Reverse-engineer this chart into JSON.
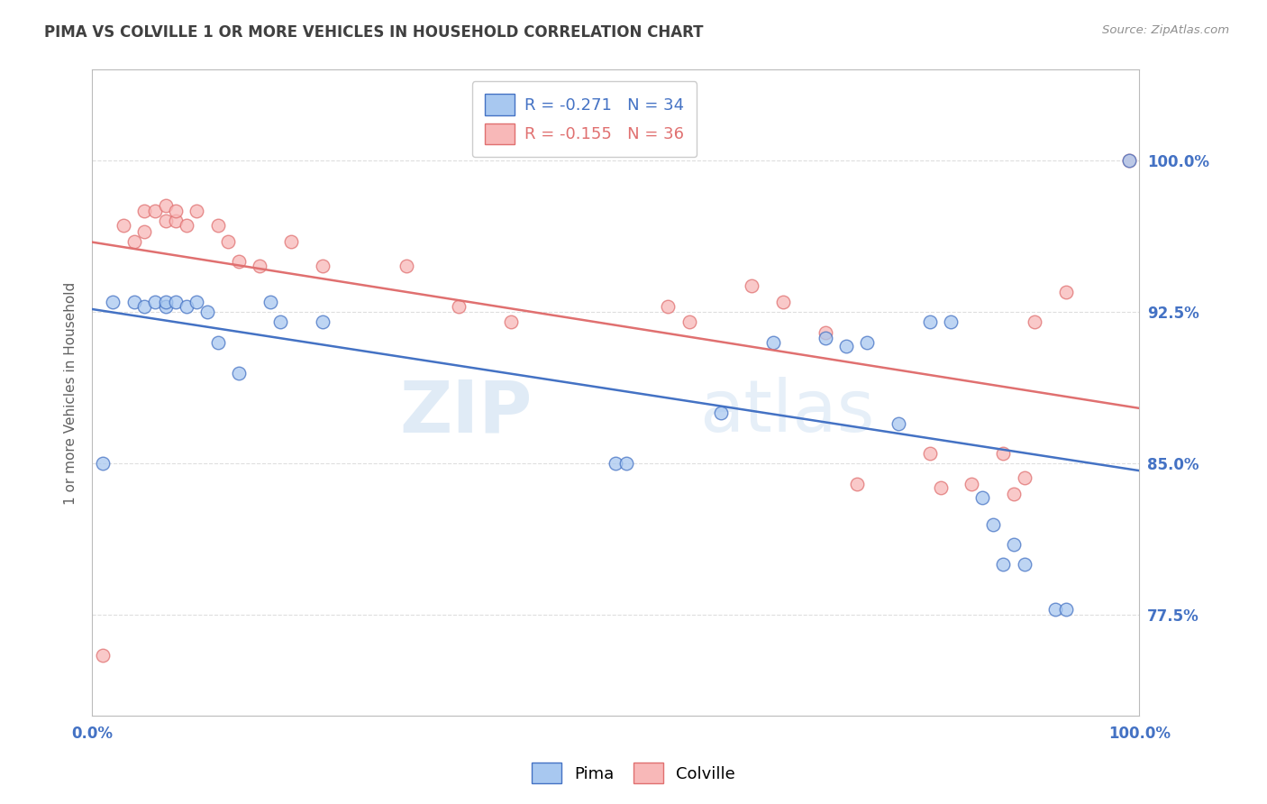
{
  "title": "PIMA VS COLVILLE 1 OR MORE VEHICLES IN HOUSEHOLD CORRELATION CHART",
  "source": "Source: ZipAtlas.com",
  "ylabel": "1 or more Vehicles in Household",
  "xlim": [
    0.0,
    1.0
  ],
  "ylim": [
    0.725,
    1.045
  ],
  "yticks": [
    0.775,
    0.85,
    0.925,
    1.0
  ],
  "ytick_labels": [
    "77.5%",
    "85.0%",
    "92.5%",
    "100.0%"
  ],
  "xticks": [
    0.0,
    0.1,
    0.2,
    0.3,
    0.4,
    0.5,
    0.6,
    0.7,
    0.8,
    0.9,
    1.0
  ],
  "xtick_labels": [
    "0.0%",
    "",
    "",
    "",
    "",
    "",
    "",
    "",
    "",
    "",
    "100.0%"
  ],
  "pima_color": "#A8C8F0",
  "colville_color": "#F8B8B8",
  "pima_edge_color": "#4472C4",
  "colville_edge_color": "#E07070",
  "pima_line_color": "#4472C4",
  "colville_line_color": "#E07070",
  "legend_pima_label": "Pima",
  "legend_colville_label": "Colville",
  "pima_R": -0.271,
  "pima_N": 34,
  "colville_R": -0.155,
  "colville_N": 36,
  "watermark_zip": "ZIP",
  "watermark_atlas": "atlas",
  "pima_x": [
    0.01,
    0.02,
    0.04,
    0.05,
    0.06,
    0.07,
    0.07,
    0.08,
    0.09,
    0.1,
    0.11,
    0.12,
    0.14,
    0.17,
    0.18,
    0.22,
    0.5,
    0.51,
    0.6,
    0.65,
    0.7,
    0.72,
    0.74,
    0.77,
    0.8,
    0.82,
    0.85,
    0.86,
    0.87,
    0.88,
    0.89,
    0.92,
    0.93,
    0.99
  ],
  "pima_y": [
    0.85,
    0.93,
    0.93,
    0.928,
    0.93,
    0.928,
    0.93,
    0.93,
    0.928,
    0.93,
    0.925,
    0.91,
    0.895,
    0.93,
    0.92,
    0.92,
    0.85,
    0.85,
    0.875,
    0.91,
    0.912,
    0.908,
    0.91,
    0.87,
    0.92,
    0.92,
    0.833,
    0.82,
    0.8,
    0.81,
    0.8,
    0.778,
    0.778,
    1.0
  ],
  "colville_x": [
    0.01,
    0.03,
    0.04,
    0.05,
    0.05,
    0.06,
    0.07,
    0.07,
    0.08,
    0.08,
    0.09,
    0.1,
    0.12,
    0.13,
    0.14,
    0.16,
    0.19,
    0.22,
    0.3,
    0.35,
    0.4,
    0.55,
    0.57,
    0.63,
    0.66,
    0.7,
    0.73,
    0.8,
    0.81,
    0.84,
    0.87,
    0.88,
    0.89,
    0.9,
    0.93,
    0.99
  ],
  "colville_y": [
    0.755,
    0.968,
    0.96,
    0.965,
    0.975,
    0.975,
    0.97,
    0.978,
    0.97,
    0.975,
    0.968,
    0.975,
    0.968,
    0.96,
    0.95,
    0.948,
    0.96,
    0.948,
    0.948,
    0.928,
    0.92,
    0.928,
    0.92,
    0.938,
    0.93,
    0.915,
    0.84,
    0.855,
    0.838,
    0.84,
    0.855,
    0.835,
    0.843,
    0.92,
    0.935,
    1.0
  ],
  "marker_size": 110,
  "marker_alpha": 0.75,
  "line_width": 1.8,
  "grid_color": "#C8C8C8",
  "grid_style": "--",
  "grid_alpha": 0.6,
  "bg_color": "#FFFFFF",
  "title_color": "#404040",
  "axis_label_color": "#606060",
  "tick_color": "#4472C4",
  "source_color": "#909090"
}
